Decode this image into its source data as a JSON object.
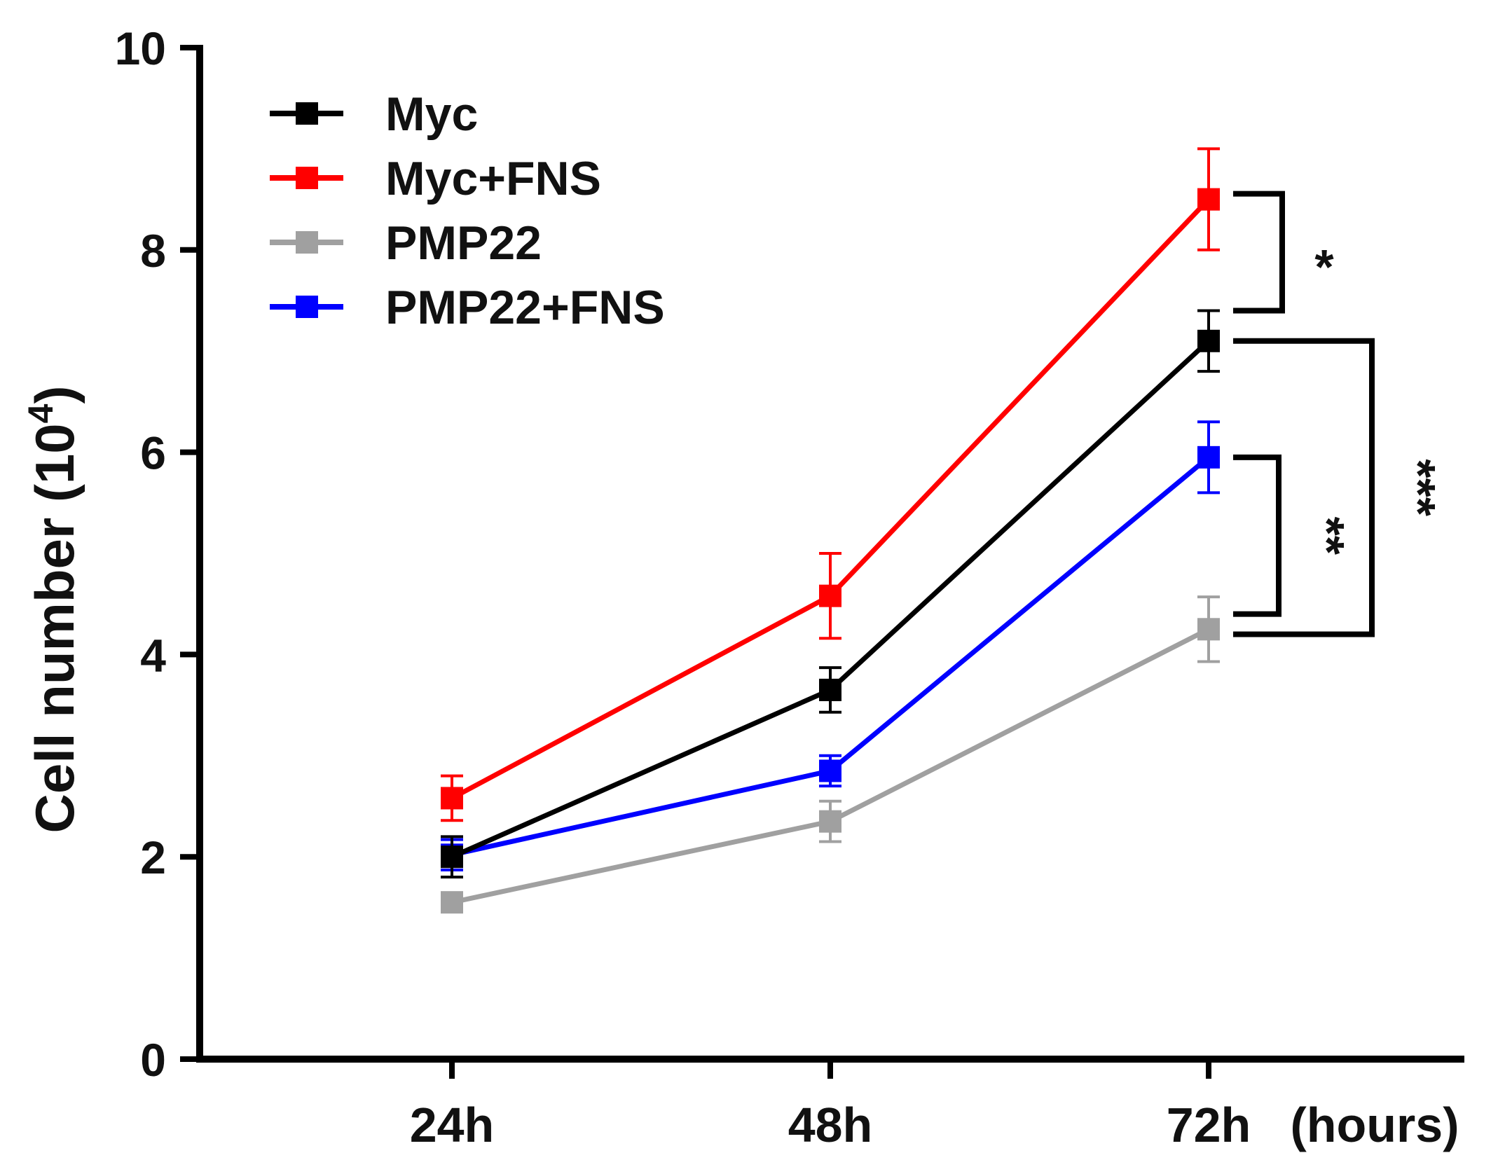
{
  "chart_data": {
    "type": "line",
    "title": "",
    "xlabel": "(hours)",
    "ylabel": "Cell number (10",
    "ylabel_superscript": "4",
    "ylabel_close": ")",
    "categories": [
      "24h",
      "48h",
      "72h"
    ],
    "ylim": [
      0,
      10
    ],
    "yticks": [
      "0",
      "2",
      "4",
      "6",
      "8",
      "10"
    ],
    "legend_position": "top-left",
    "series": [
      {
        "name": "Myc",
        "color": "#000000",
        "values": [
          2.0,
          3.65,
          7.1
        ],
        "errors": [
          0.2,
          0.22,
          0.3
        ]
      },
      {
        "name": "Myc+FNS",
        "color": "#ff0000",
        "values": [
          2.58,
          4.58,
          8.5
        ],
        "errors": [
          0.22,
          0.42,
          0.5
        ]
      },
      {
        "name": "PMP22",
        "color": "#a0a0a0",
        "values": [
          1.55,
          2.35,
          4.25
        ],
        "errors": [
          0.08,
          0.2,
          0.32
        ]
      },
      {
        "name": "PMP22+FNS",
        "color": "#0000ff",
        "values": [
          2.02,
          2.85,
          5.95
        ],
        "errors": [
          0.15,
          0.15,
          0.35
        ]
      }
    ],
    "significance": [
      {
        "label": "*",
        "between": [
          "Myc+FNS",
          "Myc"
        ],
        "at": "72h"
      },
      {
        "label": "**",
        "between": [
          "PMP22+FNS",
          "PMP22"
        ],
        "at": "72h"
      },
      {
        "label": "***",
        "between": [
          "Myc",
          "PMP22"
        ],
        "at": "72h"
      }
    ]
  }
}
